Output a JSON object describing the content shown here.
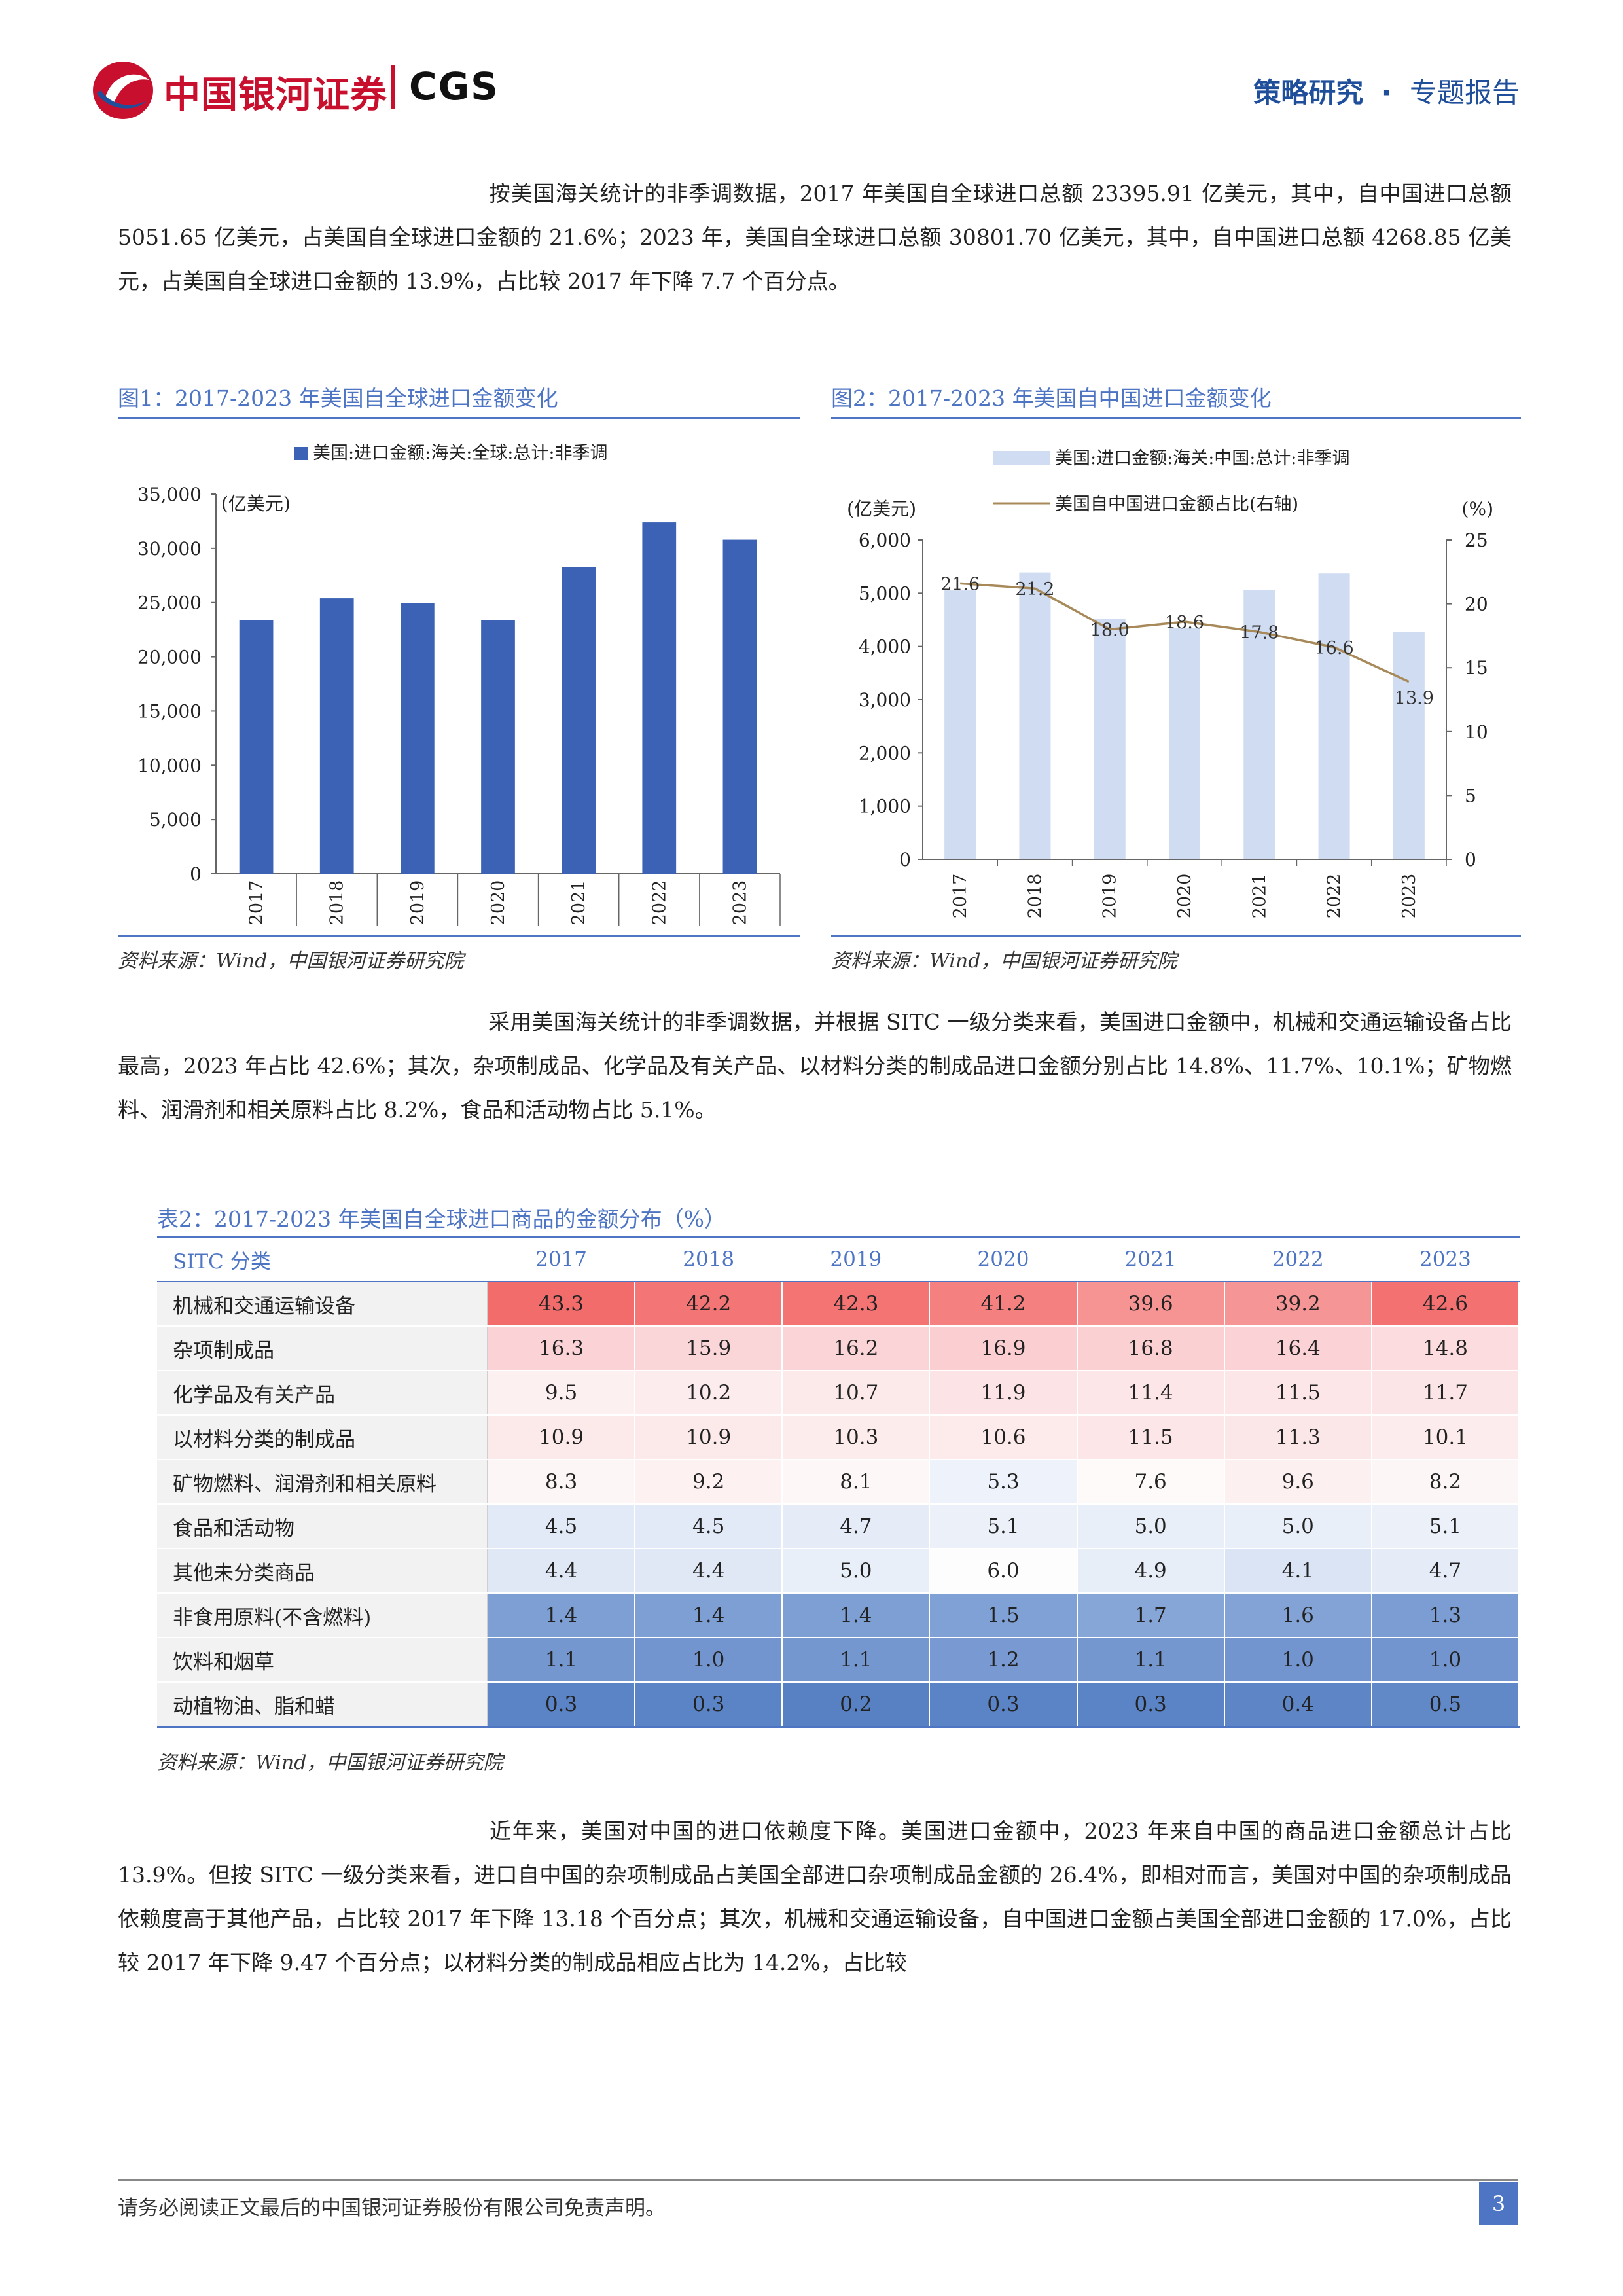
{
  "header": {
    "logo_cn": "中国银河证券",
    "logo_en": "CGS",
    "section": "策略研究",
    "dot": "·",
    "report_type": "专题报告"
  },
  "paragraphs": {
    "p1": "按美国海关统计的非季调数据，2017 年美国自全球进口总额 23395.91 亿美元，其中，自中国进口总额 5051.65 亿美元，占美国自全球进口金额的 21.6%；2023 年，美国自全球进口总额 30801.70 亿美元，其中，自中国进口总额 4268.85 亿美元，占美国自全球进口金额的 13.9%，占比较 2017 年下降 7.7 个百分点。",
    "p2": "采用美国海关统计的非季调数据，并根据 SITC 一级分类来看，美国进口金额中，机械和交通运输设备占比最高，2023 年占比 42.6%；其次，杂项制成品、化学品及有关产品、以材料分类的制成品进口金额分别占比 14.8%、11.7%、10.1%；矿物燃料、润滑剂和相关原料占比 8.2%，食品和活动物占比 5.1%。",
    "p3": "近年来，美国对中国的进口依赖度下降。美国进口金额中，2023 年来自中国的商品进口金额总计占比 13.9%。但按 SITC 一级分类来看，进口自中国的杂项制成品占美国全部进口杂项制成品金额的 26.4%，即相对而言，美国对中国的杂项制成品依赖度高于其他产品，占比较 2017 年下降 13.18 个百分点；其次，机械和交通运输设备，自中国进口金额占美国全部进口金额的 17.0%，占比较 2017 年下降 9.47 个百分点；以材料分类的制成品相应占比为 14.2%，占比较"
  },
  "figure1": {
    "title": "图1：2017-2023 年美国自全球进口金额变化",
    "source": "资料来源：Wind，中国银河证券研究院"
  },
  "figure2": {
    "title": "图2：2017-2023 年美国自中国进口金额变化",
    "source": "资料来源：Wind，中国银河证券研究院"
  },
  "chart_data": [
    {
      "type": "bar",
      "legend": [
        "美国:进口金额:海关:全球:总计:非季调"
      ],
      "ylabel": "(亿美元)",
      "categories": [
        "2017",
        "2018",
        "2019",
        "2020",
        "2021",
        "2022",
        "2023"
      ],
      "series": [
        {
          "name": "美国:进口金额:海关:全球:总计:非季调",
          "values": [
            23396,
            25400,
            24980,
            23400,
            28300,
            32400,
            30802
          ]
        }
      ],
      "ylim": [
        0,
        35000
      ],
      "yticks": [
        "0",
        "5,000",
        "10,000",
        "15,000",
        "20,000",
        "25,000",
        "30,000",
        "35,000"
      ],
      "color": "#3b62b4",
      "legend_position": "top"
    },
    {
      "type": "bar+line",
      "ylabel": "(亿美元)",
      "y2label": "(%)",
      "categories": [
        "2017",
        "2018",
        "2019",
        "2020",
        "2021",
        "2022",
        "2023"
      ],
      "series": [
        {
          "name": "美国:进口金额:海关:中国:总计:非季调",
          "type": "bar",
          "axis": "left",
          "values": [
            5052,
            5390,
            4520,
            4350,
            5060,
            5370,
            4269
          ],
          "color": "#cfdcf1"
        },
        {
          "name": "美国自中国进口金额占比(右轴)",
          "type": "line",
          "axis": "right",
          "values": [
            21.6,
            21.2,
            18.0,
            18.6,
            17.8,
            16.6,
            13.9
          ],
          "labels": [
            "21.6",
            "21.2",
            "18.0",
            "18.6",
            "17.8",
            "16.6",
            "13.9"
          ],
          "color": "#a88a5a"
        }
      ],
      "ylim": [
        0,
        6000
      ],
      "y2lim": [
        0,
        25
      ],
      "yticks": [
        "0",
        "1,000",
        "2,000",
        "3,000",
        "4,000",
        "5,000",
        "6,000"
      ],
      "y2ticks": [
        "0",
        "5",
        "10",
        "15",
        "20",
        "25"
      ],
      "legend_position": "top"
    }
  ],
  "table": {
    "title": "表2：2017-2023 年美国自全球进口商品的金额分布（%）",
    "header": [
      "SITC 分类",
      "2017",
      "2018",
      "2019",
      "2020",
      "2021",
      "2022",
      "2023"
    ],
    "rows": [
      {
        "category": "机械和交通运输设备",
        "values": [
          "43.3",
          "42.2",
          "42.3",
          "41.2",
          "39.6",
          "39.2",
          "42.6"
        ],
        "colors": [
          "#f36c6c",
          "#f47575",
          "#f47474",
          "#f58080",
          "#f69393",
          "#f69595",
          "#f47171"
        ]
      },
      {
        "category": "杂项制成品",
        "values": [
          "16.3",
          "15.9",
          "16.2",
          "16.9",
          "16.8",
          "16.4",
          "14.8"
        ],
        "colors": [
          "#fbd3d6",
          "#fbd6d9",
          "#fbd4d7",
          "#fbcfd2",
          "#fbd0d3",
          "#fbd2d5",
          "#fcdcde"
        ]
      },
      {
        "category": "化学品及有关产品",
        "values": [
          "9.5",
          "10.2",
          "10.7",
          "11.9",
          "11.4",
          "11.5",
          "11.7"
        ],
        "colors": [
          "#fdf0f1",
          "#fdeced",
          "#fceaeb",
          "#fce4e6",
          "#fce6e8",
          "#fce6e7",
          "#fce5e7"
        ]
      },
      {
        "category": "以材料分类的制成品",
        "values": [
          "10.9",
          "10.9",
          "10.3",
          "10.6",
          "11.5",
          "11.3",
          "10.1"
        ],
        "colors": [
          "#fce9ea",
          "#fce9ea",
          "#fdecec",
          "#fdeaeb",
          "#fce6e7",
          "#fce7e8",
          "#fdeced"
        ]
      },
      {
        "category": "矿物燃料、润滑剂和相关原料",
        "values": [
          "8.3",
          "9.2",
          "8.1",
          "5.3",
          "7.6",
          "9.6",
          "8.2"
        ],
        "colors": [
          "#fdf6f6",
          "#fdf1f2",
          "#fdf7f7",
          "#eef2fa",
          "#fefafa",
          "#fdf0f0",
          "#fdf6f7"
        ]
      },
      {
        "category": "食品和活动物",
        "values": [
          "4.5",
          "4.5",
          "4.7",
          "5.1",
          "5.0",
          "5.0",
          "5.1"
        ],
        "colors": [
          "#e2eaf7",
          "#e2eaf7",
          "#e5ecf8",
          "#ebf0f9",
          "#e9eff9",
          "#e9eff9",
          "#ebf0f9"
        ]
      },
      {
        "category": "其他未分类商品",
        "values": [
          "4.4",
          "4.4",
          "5.0",
          "6.0",
          "4.9",
          "4.1",
          "4.7"
        ],
        "colors": [
          "#e0e8f6",
          "#e0e8f6",
          "#e9eff9",
          "#fdfdfe",
          "#e8eef8",
          "#dbe4f4",
          "#e5ecf8"
        ]
      },
      {
        "category": "非食用原料(不含燃料)",
        "values": [
          "1.4",
          "1.4",
          "1.4",
          "1.5",
          "1.7",
          "1.6",
          "1.3"
        ],
        "colors": [
          "#7d9fd4",
          "#7d9fd4",
          "#7d9fd4",
          "#80a1d5",
          "#86a6d7",
          "#83a3d6",
          "#7b9dd3"
        ]
      },
      {
        "category": "饮料和烟草",
        "values": [
          "1.1",
          "1.0",
          "1.1",
          "1.2",
          "1.1",
          "1.0",
          "1.0"
        ],
        "colors": [
          "#7597d0",
          "#7294cf",
          "#7597d0",
          "#7899d1",
          "#7597d0",
          "#7294cf",
          "#7294cf"
        ]
      },
      {
        "category": "动植物油、脂和蜡",
        "values": [
          "0.3",
          "0.3",
          "0.2",
          "0.3",
          "0.3",
          "0.4",
          "0.5"
        ],
        "colors": [
          "#5b84c6",
          "#5b84c6",
          "#5881c4",
          "#5b84c6",
          "#5b84c6",
          "#5e86c7",
          "#6189c8"
        ]
      }
    ],
    "source": "资料来源：Wind，中国银河证券研究院"
  },
  "footer": {
    "disclaimer": "请务必阅读正文最后的中国银河证券股份有限公司免责声明。",
    "page": "3"
  }
}
